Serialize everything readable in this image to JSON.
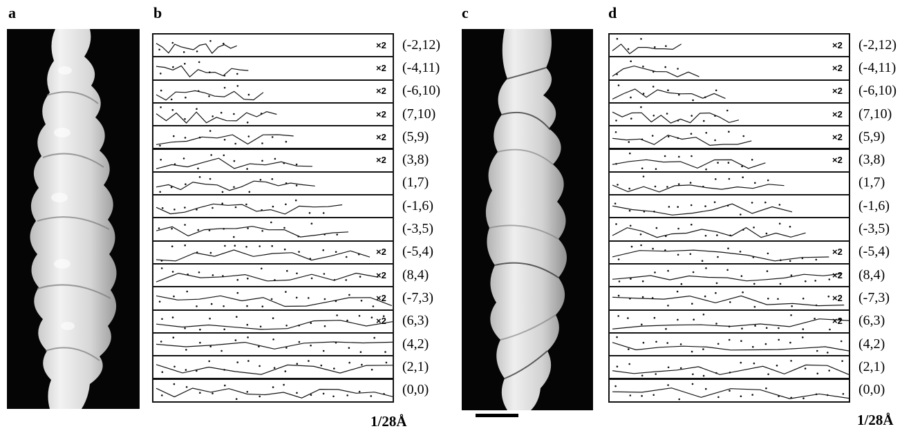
{
  "panels": {
    "a": {
      "label": "a"
    },
    "b": {
      "label": "b",
      "unit": "1/28Å"
    },
    "c": {
      "label": "c"
    },
    "d": {
      "label": "d",
      "unit": "1/28Å"
    }
  },
  "scale_marker": "×2",
  "layer_lines": [
    {
      "index": "(-2,12)",
      "b_x2": true,
      "d_x2": true
    },
    {
      "index": "(-4,11)",
      "b_x2": true,
      "d_x2": true
    },
    {
      "index": "(-6,10)",
      "b_x2": true,
      "d_x2": true
    },
    {
      "index": "(7,10)",
      "b_x2": true,
      "d_x2": true
    },
    {
      "index": "(5,9)",
      "b_x2": true,
      "d_x2": true
    },
    {
      "index": "(3,8)",
      "b_x2": true,
      "d_x2": true
    },
    {
      "index": "(1,7)",
      "b_x2": false,
      "d_x2": false
    },
    {
      "index": "(-1,6)",
      "b_x2": false,
      "d_x2": false
    },
    {
      "index": "(-3,5)",
      "b_x2": false,
      "d_x2": false
    },
    {
      "index": "(-5,4)",
      "b_x2": true,
      "d_x2": true
    },
    {
      "index": "(8,4)",
      "b_x2": true,
      "d_x2": true
    },
    {
      "index": "(-7,3)",
      "b_x2": true,
      "d_x2": true
    },
    {
      "index": "(6,3)",
      "b_x2": true,
      "d_x2": true
    },
    {
      "index": "(4,2)",
      "b_x2": false,
      "d_x2": false
    },
    {
      "index": "(2,1)",
      "b_x2": false,
      "d_x2": false
    },
    {
      "index": "(0,0)",
      "b_x2": false,
      "d_x2": false
    }
  ]
}
